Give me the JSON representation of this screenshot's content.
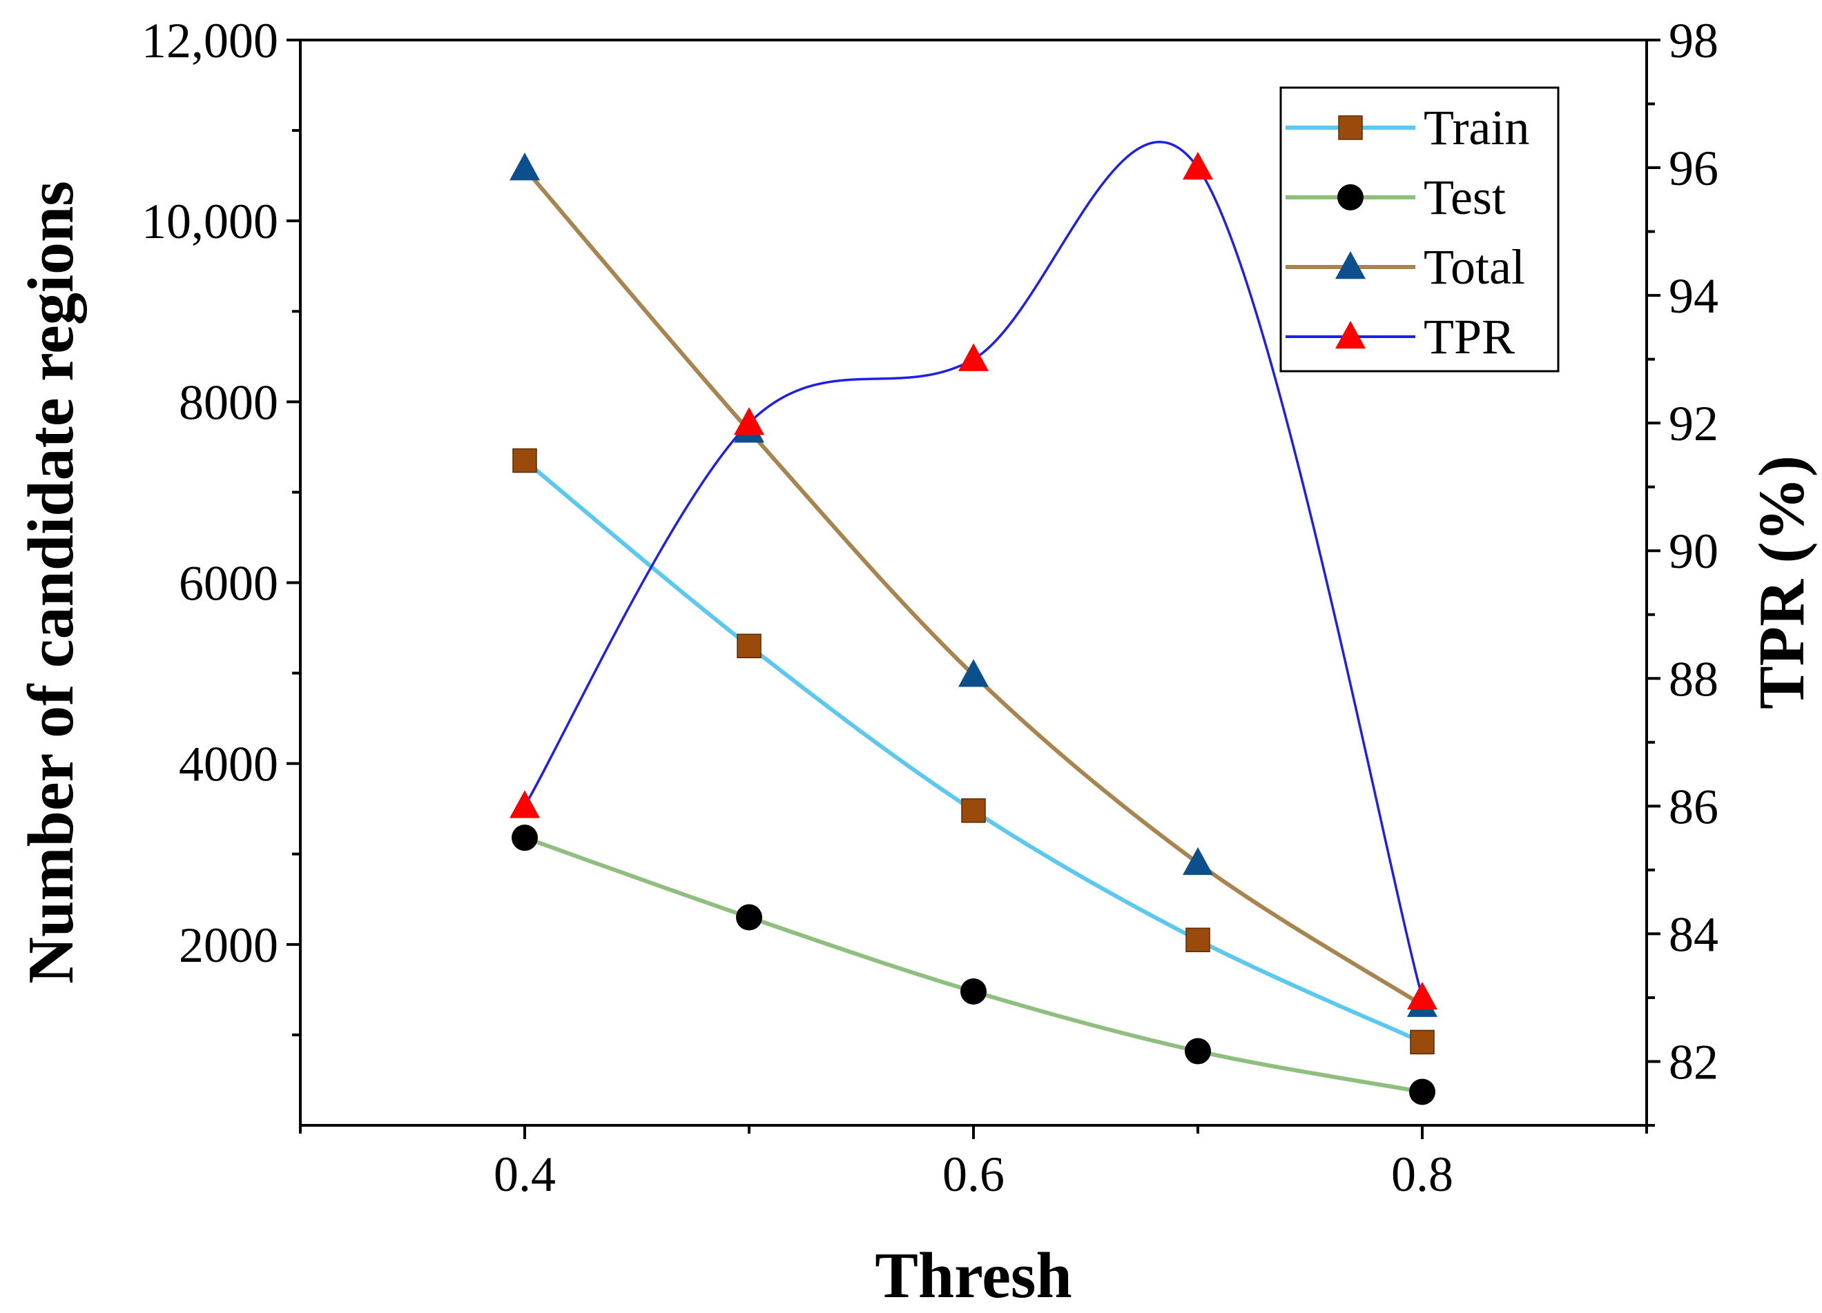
{
  "chart_data": {
    "type": "line",
    "xlabel": "Thresh",
    "ylabel": "Number of candidate regions",
    "y2label": "TPR (%)",
    "x": [
      0.4,
      0.5,
      0.6,
      0.7,
      0.8
    ],
    "xlim": [
      0.3,
      0.9
    ],
    "ylim": [
      0,
      12000
    ],
    "y2lim": [
      81,
      98
    ],
    "x_ticks": [
      0.4,
      0.6,
      0.8
    ],
    "x_tick_labels": [
      "0.4",
      "0.6",
      "0.8"
    ],
    "y_ticks": [
      2000,
      4000,
      6000,
      8000,
      10000,
      12000
    ],
    "y_tick_labels": [
      "2000",
      "4000",
      "6000",
      "8000",
      "10,000",
      "12,000"
    ],
    "y2_ticks": [
      82,
      84,
      86,
      88,
      90,
      92,
      94,
      96,
      98
    ],
    "y2_tick_labels": [
      "82",
      "84",
      "86",
      "88",
      "90",
      "92",
      "94",
      "96",
      "98"
    ],
    "legend_position": "top-right",
    "series": [
      {
        "name": "Train",
        "axis": "left",
        "values": [
          7350,
          5300,
          3480,
          2050,
          920
        ],
        "line_color": "#5bc8f0",
        "marker": "square",
        "marker_color": "#9a4a0a"
      },
      {
        "name": "Test",
        "axis": "left",
        "values": [
          3180,
          2300,
          1480,
          820,
          370
        ],
        "line_color": "#8fbf7f",
        "marker": "circle",
        "marker_color": "#000000"
      },
      {
        "name": "Total",
        "axis": "left",
        "values": [
          10580,
          7680,
          4980,
          2900,
          1330
        ],
        "line_color": "#a8844e",
        "marker": "triangle",
        "marker_color": "#0b4f8c"
      },
      {
        "name": "TPR",
        "axis": "right",
        "values": [
          86,
          92,
          93,
          96,
          83
        ],
        "line_color": "#1f1fe6",
        "marker": "triangle",
        "marker_color": "#ff0000"
      }
    ]
  }
}
